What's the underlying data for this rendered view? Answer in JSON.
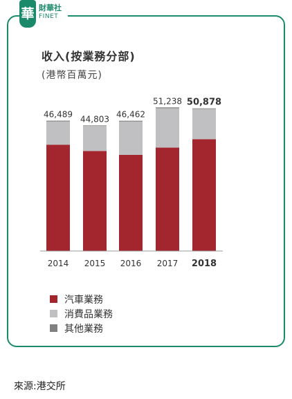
{
  "logo": {
    "mark": "華",
    "name_cn": "財華社",
    "name_en": "FINET"
  },
  "colors": {
    "frame": "#1b8a6b",
    "auto": "#a3262f",
    "consumer": "#c0c0c2",
    "other": "#808080"
  },
  "chart_data": {
    "type": "bar",
    "stacked": true,
    "title": "收入(按業務分部)",
    "subtitle": "(港幣百萬元)",
    "categories": [
      "2014",
      "2015",
      "2016",
      "2017",
      "2018"
    ],
    "totals": [
      "46,489",
      "44,803",
      "46,462",
      "51,238",
      "50,878"
    ],
    "highlight_index": 4,
    "series": [
      {
        "name": "汽車業務",
        "values": [
          37930,
          35680,
          34290,
          36870,
          39900
        ]
      },
      {
        "name": "消費品業務",
        "values": [
          8259,
          8923,
          11872,
          14068,
          10778
        ]
      },
      {
        "name": "其他業務",
        "values": [
          300,
          200,
          300,
          300,
          200
        ]
      }
    ],
    "ylim": [
      0,
      55000
    ],
    "legend_position": "bottom-left"
  },
  "source": "來源:港交所"
}
